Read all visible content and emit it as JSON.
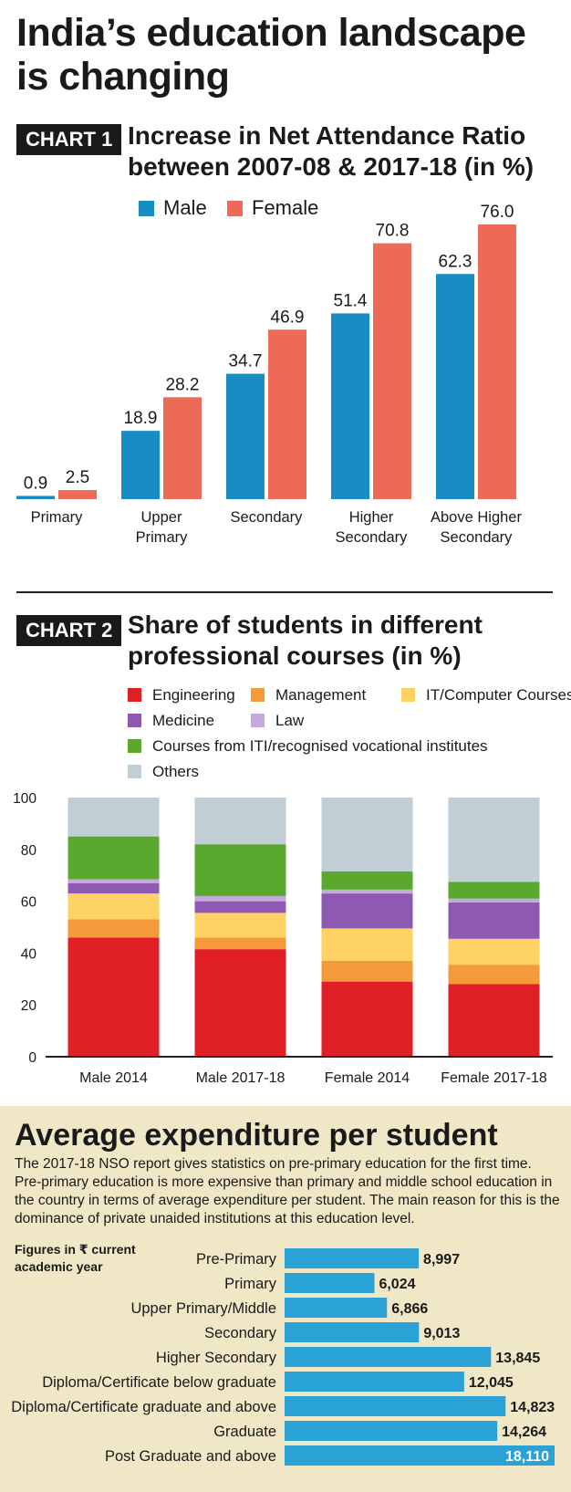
{
  "title": "India’s education landscape is changing",
  "chart1": {
    "tag": "CHART 1",
    "heading": "Increase in Net Attendance Ratio between 2007-08 & 2017-18 (in %)"
  },
  "chart2": {
    "tag": "CHART 2",
    "heading": "Share of students in different professional courses (in %)"
  },
  "expenditure": {
    "title": "Average expenditure per student",
    "description": "The 2017-18 NSO report gives statistics on pre-primary education for the first time. Pre-primary education is more expensive than primary and middle school education in the country in terms of average expenditure per student. The main reason for this is the dominance of private unaided institutions at this education level.",
    "note": "Figures in ₹ current academic year"
  },
  "chart_data": [
    {
      "type": "bar",
      "categories": [
        [
          "Primary"
        ],
        [
          "Upper",
          "Primary"
        ],
        [
          "Secondary"
        ],
        [
          "Higher",
          "Secondary"
        ],
        [
          "Above Higher",
          "Secondary"
        ]
      ],
      "series": [
        {
          "name": "Male",
          "values": [
            0.9,
            18.9,
            34.7,
            51.4,
            62.3
          ],
          "labels": [
            "0.9",
            "18.9",
            "34.7",
            "51.4",
            "62.3"
          ],
          "color": "#1a8cc4"
        },
        {
          "name": "Female",
          "values": [
            2.5,
            28.2,
            46.9,
            70.8,
            76.0
          ],
          "labels": [
            "2.5",
            "28.2",
            "46.9",
            "70.8",
            "76.0"
          ],
          "color": "#ec6a56"
        }
      ],
      "ylim": [
        0,
        76
      ]
    },
    {
      "type": "bar",
      "stacked": true,
      "categories": [
        "Male 2014",
        "Male 2017-18",
        "Female 2014",
        "Female 2017-18"
      ],
      "series": [
        {
          "name": "Engineering",
          "values": [
            46,
            41.5,
            29,
            28
          ],
          "color": "#e11f26"
        },
        {
          "name": "Management",
          "values": [
            7,
            4.5,
            8,
            7.5
          ],
          "color": "#f49a3a"
        },
        {
          "name": "IT/Computer Courses",
          "values": [
            10,
            9.5,
            12.5,
            10
          ],
          "color": "#fdd263"
        },
        {
          "name": "Medicine",
          "values": [
            4,
            4.5,
            13.5,
            14
          ],
          "color": "#8e59b1"
        },
        {
          "name": "Law",
          "values": [
            1.5,
            2,
            1.5,
            1.5
          ],
          "color": "#c6a9dc"
        },
        {
          "name": "Courses from ITI/recognised vocational institutes",
          "values": [
            16.5,
            20,
            7,
            6.5
          ],
          "color": "#5ba82e"
        },
        {
          "name": "Others",
          "values": [
            15,
            18,
            28.5,
            32.5
          ],
          "color": "#c1ced3"
        }
      ],
      "ylim": [
        0,
        100
      ],
      "yticks": [
        "0",
        "20",
        "40",
        "60",
        "80",
        "100"
      ],
      "legend_position": "top"
    },
    {
      "type": "bar",
      "orientation": "horizontal",
      "categories": [
        "Pre-Primary",
        "Primary",
        "Upper Primary/Middle",
        "Secondary",
        "Higher Secondary",
        "Diploma/Certificate below graduate",
        "Diploma/Certificate graduate and above",
        "Graduate",
        "Post Graduate and above"
      ],
      "values": [
        8997,
        6024,
        6866,
        9013,
        13845,
        12045,
        14823,
        14264,
        18110
      ],
      "labels": [
        "8,997",
        "6,024",
        "6,866",
        "9,013",
        "13,845",
        "12,045",
        "14,823",
        "14,264",
        "18,110"
      ],
      "color": "#2aa2d6"
    }
  ]
}
